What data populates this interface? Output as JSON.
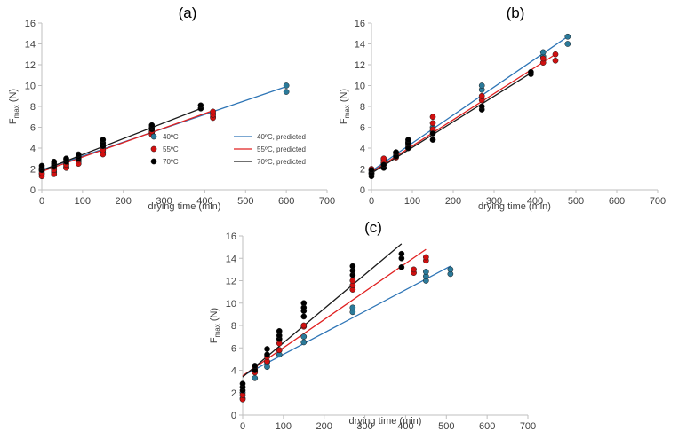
{
  "colors": {
    "c40": "#2e75b6",
    "c55": "#e02020",
    "c70": "#1a1a1a",
    "dot40": "#2b7a9a",
    "dot55": "#d01010",
    "dot70": "#000000",
    "axis": "#bfbfbf"
  },
  "chart_data": [
    {
      "type": "scatter",
      "panel": "(a)",
      "title": "(a)",
      "xlabel": "drying time (min)",
      "ylabel": "F",
      "ylabel_sub": "max",
      "ylabel_suffix": " (N)",
      "xlim": [
        0,
        700
      ],
      "ylim": [
        0,
        16
      ],
      "xticks": [
        0,
        100,
        200,
        300,
        400,
        500,
        600,
        700
      ],
      "yticks": [
        0,
        2,
        4,
        6,
        8,
        10,
        12,
        14,
        16
      ],
      "legend": {
        "points": [
          "40ºC",
          "55ºC",
          "70ºC"
        ],
        "lines": [
          "40ºC, predicted",
          "55ºC, predicted",
          "70ºC, predicted"
        ]
      },
      "series": [
        {
          "name": "40ºC",
          "color": "#2b7a9a",
          "line_color": "#2e75b6",
          "points": [
            [
              0,
              1.5
            ],
            [
              0,
              1.8
            ],
            [
              0,
              2.0
            ],
            [
              30,
              1.7
            ],
            [
              30,
              2.0
            ],
            [
              30,
              2.3
            ],
            [
              60,
              2.2
            ],
            [
              60,
              2.5
            ],
            [
              60,
              2.7
            ],
            [
              90,
              2.7
            ],
            [
              90,
              3.0
            ],
            [
              90,
              3.2
            ],
            [
              150,
              3.6
            ],
            [
              150,
              4.0
            ],
            [
              150,
              4.3
            ],
            [
              270,
              5.5
            ],
            [
              270,
              5.8
            ],
            [
              420,
              7.0
            ],
            [
              420,
              7.3
            ],
            [
              600,
              9.4
            ],
            [
              600,
              10.0
            ]
          ],
          "line": [
            [
              0,
              1.9
            ],
            [
              600,
              9.9
            ]
          ]
        },
        {
          "name": "55ºC",
          "color": "#d01010",
          "line_color": "#e02020",
          "points": [
            [
              0,
              1.3
            ],
            [
              0,
              1.6
            ],
            [
              0,
              1.9
            ],
            [
              30,
              1.5
            ],
            [
              30,
              1.9
            ],
            [
              30,
              2.2
            ],
            [
              60,
              2.1
            ],
            [
              60,
              2.4
            ],
            [
              60,
              2.7
            ],
            [
              90,
              2.5
            ],
            [
              90,
              2.9
            ],
            [
              90,
              3.2
            ],
            [
              150,
              3.4
            ],
            [
              150,
              3.8
            ],
            [
              150,
              4.2
            ],
            [
              270,
              5.3
            ],
            [
              270,
              5.6
            ],
            [
              420,
              6.9
            ],
            [
              420,
              7.2
            ],
            [
              420,
              7.5
            ]
          ],
          "line": [
            [
              0,
              1.75
            ],
            [
              420,
              7.6
            ]
          ]
        },
        {
          "name": "70ºC",
          "color": "#000000",
          "line_color": "#1a1a1a",
          "points": [
            [
              0,
              1.9
            ],
            [
              0,
              2.1
            ],
            [
              0,
              2.3
            ],
            [
              30,
              2.3
            ],
            [
              30,
              2.5
            ],
            [
              30,
              2.7
            ],
            [
              60,
              2.7
            ],
            [
              60,
              2.9
            ],
            [
              60,
              3.0
            ],
            [
              90,
              3.0
            ],
            [
              90,
              3.2
            ],
            [
              90,
              3.4
            ],
            [
              150,
              4.2
            ],
            [
              150,
              4.5
            ],
            [
              150,
              4.8
            ],
            [
              270,
              5.8
            ],
            [
              270,
              6.0
            ],
            [
              270,
              6.2
            ],
            [
              390,
              7.8
            ],
            [
              390,
              8.1
            ]
          ],
          "line": [
            [
              0,
              1.85
            ],
            [
              390,
              7.8
            ]
          ]
        }
      ]
    },
    {
      "type": "scatter",
      "panel": "(b)",
      "title": "(b)",
      "xlabel": "drying time (min)",
      "ylabel": "F",
      "ylabel_sub": "max",
      "ylabel_suffix": " (N)",
      "xlim": [
        0,
        700
      ],
      "ylim": [
        0,
        16
      ],
      "xticks": [
        0,
        100,
        200,
        300,
        400,
        500,
        600,
        700
      ],
      "yticks": [
        0,
        2,
        4,
        6,
        8,
        10,
        12,
        14,
        16
      ],
      "series": [
        {
          "name": "40ºC",
          "color": "#2b7a9a",
          "line_color": "#2e75b6",
          "points": [
            [
              0,
              1.5
            ],
            [
              0,
              1.8
            ],
            [
              30,
              2.5
            ],
            [
              30,
              2.9
            ],
            [
              60,
              3.3
            ],
            [
              60,
              3.6
            ],
            [
              90,
              4.2
            ],
            [
              90,
              4.6
            ],
            [
              150,
              5.6
            ],
            [
              150,
              6.0
            ],
            [
              270,
              9.6
            ],
            [
              270,
              10.0
            ],
            [
              420,
              12.8
            ],
            [
              420,
              13.2
            ],
            [
              480,
              14.0
            ],
            [
              480,
              14.7
            ]
          ],
          "line": [
            [
              0,
              1.8
            ],
            [
              480,
              14.7
            ]
          ]
        },
        {
          "name": "55ºC",
          "color": "#d01010",
          "line_color": "#e02020",
          "points": [
            [
              0,
              1.6
            ],
            [
              0,
              2.0
            ],
            [
              30,
              2.6
            ],
            [
              30,
              3.0
            ],
            [
              60,
              3.1
            ],
            [
              60,
              3.5
            ],
            [
              90,
              4.0
            ],
            [
              90,
              4.4
            ],
            [
              150,
              5.8
            ],
            [
              150,
              6.4
            ],
            [
              150,
              7.0
            ],
            [
              270,
              8.6
            ],
            [
              270,
              9.0
            ],
            [
              420,
              12.2
            ],
            [
              420,
              12.6
            ],
            [
              450,
              12.4
            ],
            [
              450,
              13.0
            ]
          ],
          "line": [
            [
              0,
              1.7
            ],
            [
              450,
              13.0
            ]
          ]
        },
        {
          "name": "70ºC",
          "color": "#000000",
          "line_color": "#1a1a1a",
          "points": [
            [
              0,
              1.3
            ],
            [
              0,
              1.6
            ],
            [
              0,
              1.9
            ],
            [
              30,
              2.1
            ],
            [
              30,
              2.4
            ],
            [
              60,
              3.2
            ],
            [
              60,
              3.6
            ],
            [
              90,
              4.0
            ],
            [
              90,
              4.5
            ],
            [
              90,
              4.8
            ],
            [
              150,
              4.8
            ],
            [
              150,
              5.4
            ],
            [
              270,
              7.7
            ],
            [
              270,
              8.0
            ],
            [
              390,
              11.1
            ],
            [
              390,
              11.3
            ]
          ],
          "line": [
            [
              0,
              1.6
            ],
            [
              390,
              11.2
            ]
          ]
        }
      ]
    },
    {
      "type": "scatter",
      "panel": "(c)",
      "title": "(c)",
      "xlabel": "drying time (min)",
      "ylabel": "F",
      "ylabel_sub": "max",
      "ylabel_suffix": " (N)",
      "xlim": [
        0,
        700
      ],
      "ylim": [
        0,
        16
      ],
      "xticks": [
        0,
        100,
        200,
        300,
        400,
        500,
        600,
        700
      ],
      "yticks": [
        0,
        2,
        4,
        6,
        8,
        10,
        12,
        14,
        16
      ],
      "series": [
        {
          "name": "40ºC",
          "color": "#2b7a9a",
          "line_color": "#2e75b6",
          "points": [
            [
              0,
              1.5
            ],
            [
              0,
              2.0
            ],
            [
              30,
              3.3
            ],
            [
              30,
              3.9
            ],
            [
              60,
              4.3
            ],
            [
              60,
              4.7
            ],
            [
              90,
              5.4
            ],
            [
              90,
              5.8
            ],
            [
              150,
              6.5
            ],
            [
              150,
              7.0
            ],
            [
              270,
              9.2
            ],
            [
              270,
              9.6
            ],
            [
              450,
              12.0
            ],
            [
              450,
              12.4
            ],
            [
              450,
              12.8
            ],
            [
              510,
              12.6
            ],
            [
              510,
              13.0
            ]
          ],
          "line": [
            [
              0,
              3.5
            ],
            [
              510,
              13.3
            ]
          ]
        },
        {
          "name": "55ºC",
          "color": "#d01010",
          "line_color": "#e02020",
          "points": [
            [
              0,
              1.4
            ],
            [
              0,
              1.8
            ],
            [
              30,
              3.8
            ],
            [
              30,
              4.2
            ],
            [
              60,
              4.8
            ],
            [
              60,
              5.2
            ],
            [
              90,
              5.8
            ],
            [
              90,
              6.4
            ],
            [
              90,
              6.8
            ],
            [
              150,
              7.9
            ],
            [
              150,
              8.0
            ],
            [
              270,
              11.2
            ],
            [
              270,
              11.6
            ],
            [
              270,
              12.0
            ],
            [
              420,
              12.7
            ],
            [
              420,
              13.0
            ],
            [
              450,
              13.8
            ],
            [
              450,
              14.1
            ]
          ],
          "line": [
            [
              0,
              3.5
            ],
            [
              450,
              14.8
            ]
          ]
        },
        {
          "name": "70ºC",
          "color": "#000000",
          "line_color": "#1a1a1a",
          "points": [
            [
              0,
              2.2
            ],
            [
              0,
              2.5
            ],
            [
              0,
              2.8
            ],
            [
              30,
              4.0
            ],
            [
              30,
              4.4
            ],
            [
              60,
              5.4
            ],
            [
              60,
              5.9
            ],
            [
              90,
              6.8
            ],
            [
              90,
              7.1
            ],
            [
              90,
              7.5
            ],
            [
              150,
              8.8
            ],
            [
              150,
              9.3
            ],
            [
              150,
              9.6
            ],
            [
              150,
              10.0
            ],
            [
              270,
              12.5
            ],
            [
              270,
              12.9
            ],
            [
              270,
              13.3
            ],
            [
              390,
              13.2
            ],
            [
              390,
              14.0
            ],
            [
              390,
              14.4
            ]
          ],
          "line": [
            [
              0,
              3.4
            ],
            [
              390,
              15.3
            ]
          ]
        }
      ]
    }
  ]
}
